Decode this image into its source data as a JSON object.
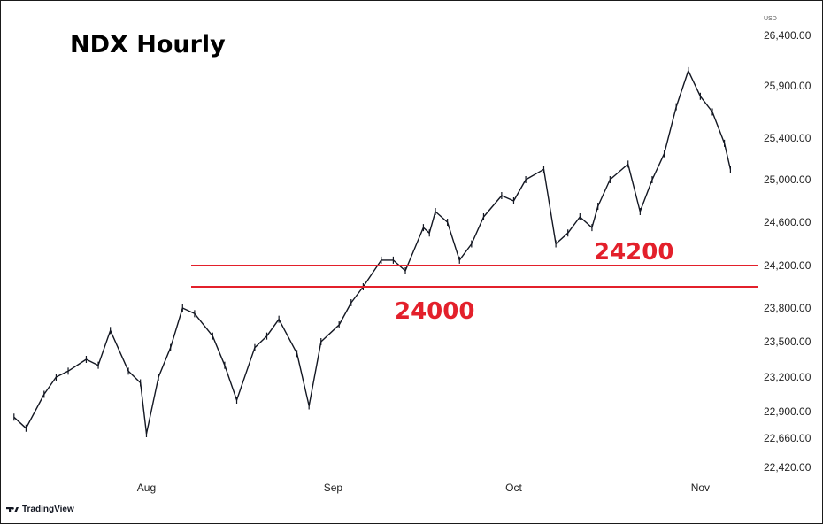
{
  "chart_data": {
    "type": "line",
    "title": "NDX Hourly",
    "unit": "USD",
    "x_ticks": [
      "Aug",
      "Sep",
      "Oct",
      "Nov"
    ],
    "y_ticks": [
      "26,400.00",
      "25,900.00",
      "25,400.00",
      "25,000.00",
      "24,600.00",
      "24,200.00",
      "23,800.00",
      "23,500.00",
      "23,200.00",
      "22,900.00",
      "22,660.00",
      "22,420.00"
    ],
    "y_tick_values": [
      26400,
      25900,
      25400,
      25000,
      24600,
      24200,
      23800,
      23500,
      23200,
      22900,
      22660,
      22420
    ],
    "grid": false,
    "series": [
      {
        "x": [
          "Jul 10",
          "Jul 12",
          "Jul 15",
          "Jul 17",
          "Jul 19",
          "Jul 22",
          "Jul 24",
          "Jul 26",
          "Jul 29",
          "Jul 31",
          "Aug 1",
          "Aug 3",
          "Aug 5",
          "Aug 7",
          "Aug 9",
          "Aug 12",
          "Aug 14",
          "Aug 16",
          "Aug 19",
          "Aug 21",
          "Aug 23",
          "Aug 26",
          "Aug 28",
          "Aug 30",
          "Sep 2",
          "Sep 4",
          "Sep 6",
          "Sep 9",
          "Sep 11",
          "Sep 13",
          "Sep 16",
          "Sep 17",
          "Sep 18",
          "Sep 20",
          "Sep 22",
          "Sep 24",
          "Sep 26",
          "Sep 29",
          "Oct 1",
          "Oct 3",
          "Oct 6",
          "Oct 8",
          "Oct 10",
          "Oct 12",
          "Oct 14",
          "Oct 15",
          "Oct 17",
          "Oct 20",
          "Oct 22",
          "Oct 24",
          "Oct 26",
          "Oct 28",
          "Oct 30",
          "Nov 1",
          "Nov 3",
          "Nov 5",
          "Nov 6"
        ],
        "values": [
          22850,
          22750,
          23050,
          23200,
          23250,
          23350,
          23300,
          23600,
          23250,
          23150,
          22700,
          23200,
          23450,
          23800,
          23750,
          23550,
          23300,
          23000,
          23450,
          23550,
          23700,
          23400,
          22950,
          23500,
          23650,
          23850,
          24000,
          24250,
          24250,
          24150,
          24550,
          24500,
          24700,
          24600,
          24250,
          24400,
          24650,
          24850,
          24800,
          25000,
          25100,
          24400,
          24500,
          24650,
          24550,
          24750,
          25000,
          25150,
          24700,
          25000,
          25250,
          25700,
          26050,
          25800,
          25650,
          25350,
          25100
        ],
        "line_color": "#131722"
      }
    ],
    "ylim": [
      22300,
      26550
    ],
    "annotations": [
      {
        "label": "24200",
        "value": 24200,
        "color": "#e3202b"
      },
      {
        "label": "24000",
        "value": 24000,
        "color": "#e3202b"
      }
    ],
    "brand": "TradingView"
  }
}
